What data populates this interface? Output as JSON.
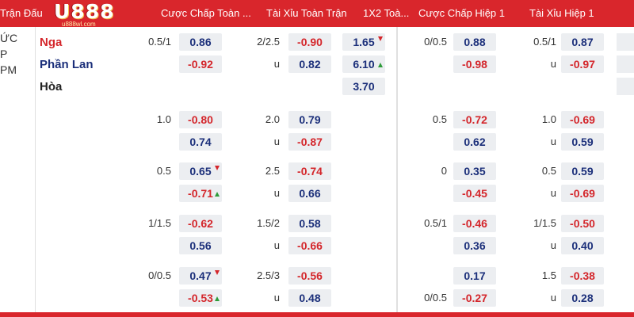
{
  "header": {
    "match_label": "Trận Đấu",
    "columns": [
      "Cược Chấp Toàn ...",
      "Tài Xỉu Toàn Trận",
      "1X2 Toà...",
      "Cược Chấp Hiệp 1",
      "Tài Xỉu Hiệp 1"
    ],
    "logo_text": "U888",
    "logo_sub": "u888wl.com"
  },
  "colors": {
    "header_bg": "#d9262c",
    "positive": "#1b2f7a",
    "negative": "#d4262b",
    "up": "#2e9b3a",
    "cell_bg": "#eceef1"
  },
  "match": {
    "left_fragments": [
      "ỨC",
      "P",
      "PM"
    ],
    "teams": [
      {
        "name": "Nga",
        "color": "#d4262b"
      },
      {
        "name": "Phần Lan",
        "color": "#1b2f7a"
      },
      {
        "name": "Hòa",
        "color": "#222222"
      }
    ]
  },
  "x12": [
    {
      "value": "1.65",
      "arrow": "down",
      "sign": "pos"
    },
    {
      "value": "6.10",
      "arrow": "up",
      "sign": "pos"
    },
    {
      "value": "3.70",
      "arrow": "",
      "sign": "pos"
    }
  ],
  "rows": [
    {
      "ft_hcp": {
        "line": "0.5/1",
        "top": "0.86",
        "top_sign": "pos",
        "top_arrow": "",
        "bot": "-0.92",
        "bot_sign": "neg",
        "bot_arrow": ""
      },
      "ft_ou": {
        "line": "2/2.5",
        "unit": "u",
        "top": "-0.90",
        "top_sign": "neg",
        "bot": "0.82",
        "bot_sign": "pos"
      },
      "h1_hcp": {
        "line_top": "0/0.5",
        "line_bot": "",
        "top": "0.88",
        "top_sign": "pos",
        "bot": "-0.98",
        "bot_sign": "neg"
      },
      "h1_ou": {
        "line": "0.5/1",
        "unit": "u",
        "top": "0.87",
        "top_sign": "pos",
        "bot": "-0.97",
        "bot_sign": "neg"
      }
    },
    {
      "ft_hcp": {
        "line": "1.0",
        "top": "-0.80",
        "top_sign": "neg",
        "top_arrow": "",
        "bot": "0.74",
        "bot_sign": "pos",
        "bot_arrow": ""
      },
      "ft_ou": {
        "line": "2.0",
        "unit": "u",
        "top": "0.79",
        "top_sign": "pos",
        "bot": "-0.87",
        "bot_sign": "neg"
      },
      "h1_hcp": {
        "line_top": "0.5",
        "line_bot": "",
        "top": "-0.72",
        "top_sign": "neg",
        "bot": "0.62",
        "bot_sign": "pos"
      },
      "h1_ou": {
        "line": "1.0",
        "unit": "u",
        "top": "-0.69",
        "top_sign": "neg",
        "bot": "0.59",
        "bot_sign": "pos"
      }
    },
    {
      "ft_hcp": {
        "line": "0.5",
        "top": "0.65",
        "top_sign": "pos",
        "top_arrow": "down",
        "bot": "-0.71",
        "bot_sign": "neg",
        "bot_arrow": "up"
      },
      "ft_ou": {
        "line": "2.5",
        "unit": "u",
        "top": "-0.74",
        "top_sign": "neg",
        "bot": "0.66",
        "bot_sign": "pos"
      },
      "h1_hcp": {
        "line_top": "0",
        "line_bot": "",
        "top": "0.35",
        "top_sign": "pos",
        "bot": "-0.45",
        "bot_sign": "neg"
      },
      "h1_ou": {
        "line": "0.5",
        "unit": "u",
        "top": "0.59",
        "top_sign": "pos",
        "bot": "-0.69",
        "bot_sign": "neg"
      }
    },
    {
      "ft_hcp": {
        "line": "1/1.5",
        "top": "-0.62",
        "top_sign": "neg",
        "top_arrow": "",
        "bot": "0.56",
        "bot_sign": "pos",
        "bot_arrow": ""
      },
      "ft_ou": {
        "line": "1.5/2",
        "unit": "u",
        "top": "0.58",
        "top_sign": "pos",
        "bot": "-0.66",
        "bot_sign": "neg"
      },
      "h1_hcp": {
        "line_top": "0.5/1",
        "line_bot": "",
        "top": "-0.46",
        "top_sign": "neg",
        "bot": "0.36",
        "bot_sign": "pos"
      },
      "h1_ou": {
        "line": "1/1.5",
        "unit": "u",
        "top": "-0.50",
        "top_sign": "neg",
        "bot": "0.40",
        "bot_sign": "pos"
      }
    },
    {
      "ft_hcp": {
        "line": "0/0.5",
        "top": "0.47",
        "top_sign": "pos",
        "top_arrow": "down",
        "bot": "-0.53",
        "bot_sign": "neg",
        "bot_arrow": "up"
      },
      "ft_ou": {
        "line": "2.5/3",
        "unit": "u",
        "top": "-0.56",
        "top_sign": "neg",
        "bot": "0.48",
        "bot_sign": "pos"
      },
      "h1_hcp": {
        "line_top": "",
        "line_bot": "0/0.5",
        "top": "0.17",
        "top_sign": "pos",
        "bot": "-0.27",
        "bot_sign": "neg"
      },
      "h1_ou": {
        "line": "1.5",
        "unit": "u",
        "top": "-0.38",
        "top_sign": "neg",
        "bot": "0.28",
        "bot_sign": "pos"
      }
    }
  ]
}
